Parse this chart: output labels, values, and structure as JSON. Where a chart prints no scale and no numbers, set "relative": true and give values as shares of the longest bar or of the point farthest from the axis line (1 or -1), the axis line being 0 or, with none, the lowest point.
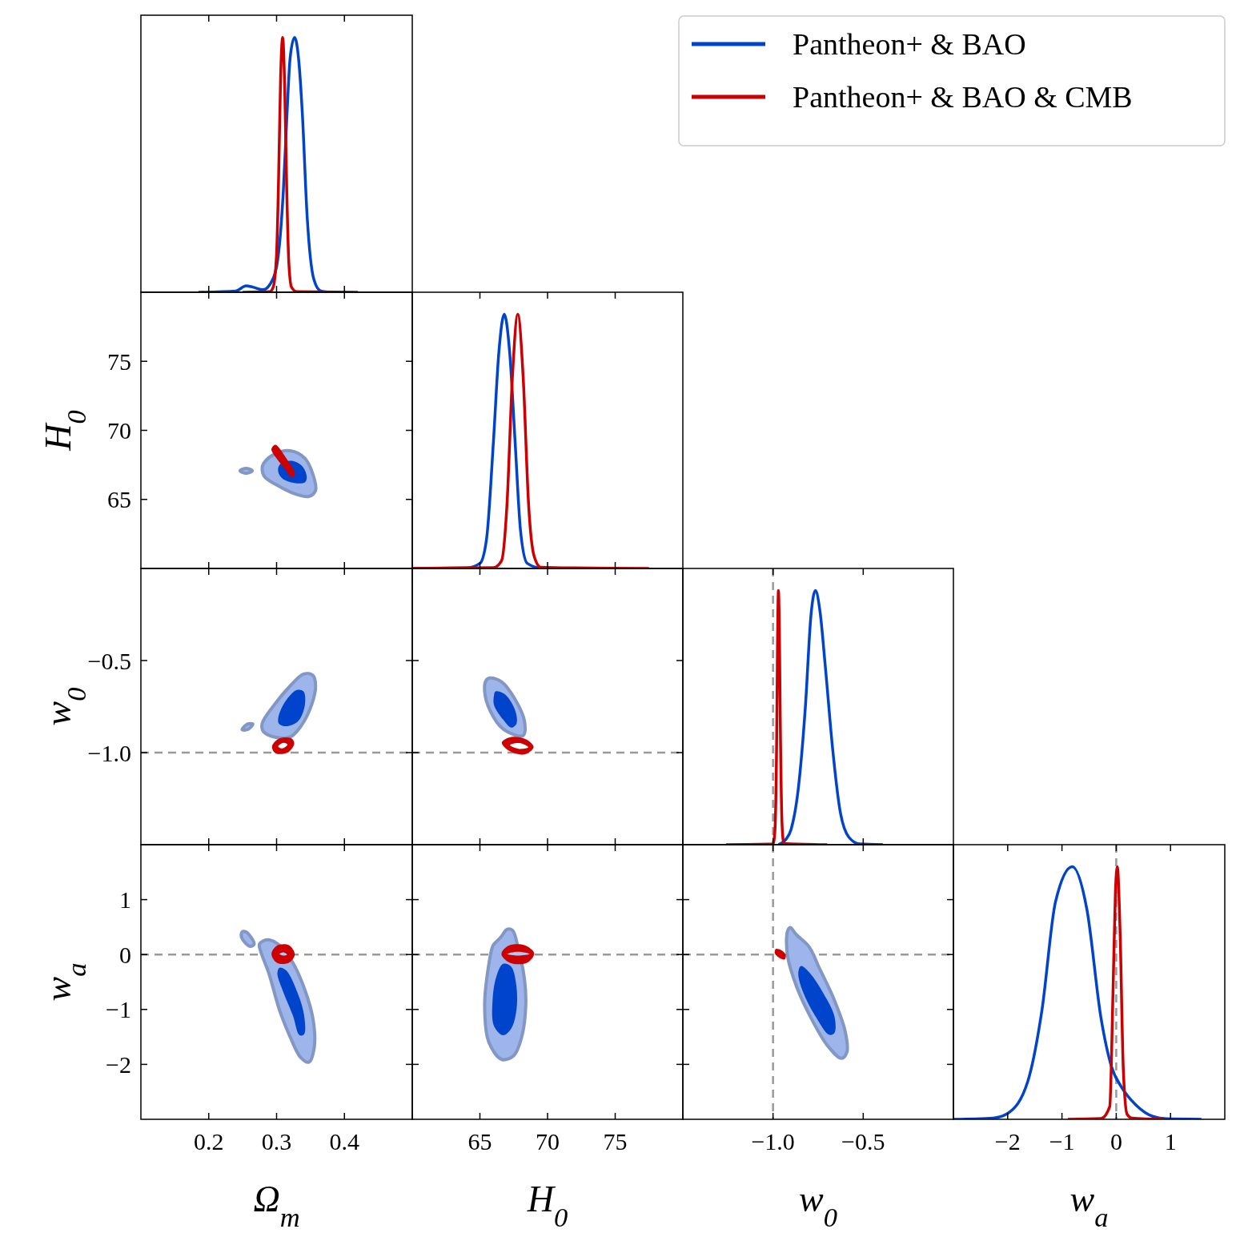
{
  "chart_data": [
    {
      "type": "line",
      "relative": true,
      "xlim": [
        0.1,
        0.5
      ],
      "xticks": [
        0.2,
        0.3,
        0.4
      ],
      "tick_labels": false,
      "legend": "right",
      "series": [
        {
          "name": "Pantheon+ & BAO",
          "color": "#0044cc",
          "x": [
            0.185,
            0.24,
            0.255,
            0.265,
            0.28,
            0.29,
            0.3,
            0.31,
            0.315,
            0.32,
            0.3265,
            0.333,
            0.338,
            0.345,
            0.355,
            0.365,
            0.38
          ],
          "values": [
            0,
            0.005,
            0.025,
            0.02,
            0.01,
            0.03,
            0.1,
            0.4,
            0.68,
            0.92,
            1,
            0.9,
            0.7,
            0.3,
            0.05,
            0.005,
            0
          ]
        },
        {
          "name": "Pantheon+ & BAO & CMB",
          "color": "#cc0000",
          "x": [
            0.25,
            0.29,
            0.295,
            0.3,
            0.303,
            0.306,
            0.309,
            0.312,
            0.315,
            0.318,
            0.322,
            0.33,
            0.42
          ],
          "values": [
            0,
            0.002,
            0.02,
            0.15,
            0.45,
            0.85,
            1,
            0.8,
            0.4,
            0.12,
            0.02,
            0.002,
            0
          ]
        }
      ]
    },
    {
      "type": "area",
      "xlim": [
        0.1,
        0.5
      ],
      "xticks": [
        0.2,
        0.3,
        0.4
      ],
      "ylim": [
        60,
        80
      ],
      "yticks": [
        65,
        70,
        75
      ],
      "tick_labels": "y",
      "ylabel": "H$_{0}$",
      "series": [
        {
          "color": "#9db5ea",
          "x": [
            0.2807,
            0.2965,
            0.32,
            0.3417,
            0.3535,
            0.3575,
            0.3476,
            0.324,
            0.3004,
            0.2827,
            0.2787
          ],
          "values": [
            67.59,
            68.27,
            68.52,
            67.98,
            66.82,
            65.65,
            65.22,
            65.46,
            66.04,
            66.62,
            67.2
          ]
        },
        {
          "color": "#9db5ea",
          "x": [
            0.2461,
            0.2551,
            0.2642,
            0.2551
          ],
          "values": [
            67.07,
            67.25,
            67.07,
            66.89
          ]
        },
        {
          "color": "#0044cc",
          "x": [
            0.3043,
            0.322,
            0.3378,
            0.3445,
            0.3417,
            0.326,
            0.3083,
            0.3024
          ],
          "values": [
            67.5,
            67.79,
            67.4,
            66.62,
            66.23,
            66.19,
            66.52,
            67.01
          ]
        },
        {
          "color": "#cc0000",
          "x": [
            0.2933,
            0.2984,
            0.3142,
            0.3272,
            0.3232,
            0.3122,
            0.2925
          ],
          "values": [
            68.76,
            68.95,
            67.98,
            66.82,
            66.58,
            67.2,
            68.56
          ]
        }
      ]
    },
    {
      "type": "line",
      "relative": true,
      "xlim": [
        60,
        80
      ],
      "xticks": [
        65,
        70,
        75
      ],
      "tick_labels": false,
      "series": [
        {
          "color": "#0044cc",
          "x": [
            60,
            64,
            65,
            65.5,
            66,
            66.4,
            66.8,
            67.2,
            67.6,
            68,
            68.5,
            69.5,
            72
          ],
          "values": [
            0,
            0.002,
            0.02,
            0.12,
            0.5,
            0.85,
            1,
            0.85,
            0.5,
            0.15,
            0.02,
            0.002,
            0
          ]
        },
        {
          "color": "#cc0000",
          "x": [
            60,
            66,
            66.6,
            67,
            67.4,
            67.8,
            68.2,
            68.6,
            69,
            69.5,
            72,
            77.5
          ],
          "values": [
            0,
            0.003,
            0.03,
            0.25,
            0.75,
            1,
            0.75,
            0.25,
            0.05,
            0.005,
            0.002,
            0
          ]
        }
      ]
    },
    {
      "type": "area",
      "xlim": [
        0.1,
        0.5
      ],
      "xticks": [
        0.2,
        0.3,
        0.4
      ],
      "ylim": [
        -1.5,
        0
      ],
      "yticks": [
        {
          "value": -1,
          "label": "−1.0"
        },
        {
          "value": -0.5,
          "label": "−0.5"
        }
      ],
      "tick_labels": "y",
      "ylabel": "w$_{0}$",
      "ref_lines": [
        {
          "axis": "y",
          "value": -1,
          "color": "#999999",
          "line_style": "dashed"
        }
      ],
      "series": [
        {
          "color": "#9db5ea",
          "x": [
            0.2787,
            0.2965,
            0.32,
            0.3398,
            0.3535,
            0.3575,
            0.3516,
            0.3358,
            0.32,
            0.2965,
            0.2807
          ],
          "values": [
            -0.843,
            -0.741,
            -0.638,
            -0.573,
            -0.58,
            -0.638,
            -0.741,
            -0.857,
            -0.915,
            -0.915,
            -0.886
          ]
        },
        {
          "color": "#9db5ea",
          "x": [
            0.2492,
            0.2571,
            0.265,
            0.2571
          ],
          "values": [
            -0.875,
            -0.845,
            -0.845,
            -0.875
          ]
        },
        {
          "color": "#0044cc",
          "x": [
            0.3024,
            0.3122,
            0.33,
            0.3398,
            0.3417,
            0.3319,
            0.3142,
            0.3035
          ],
          "values": [
            -0.813,
            -0.726,
            -0.66,
            -0.668,
            -0.741,
            -0.828,
            -0.857,
            -0.843
          ]
        },
        {
          "color": "#cc0000",
          "x": [
            0.2933,
            0.3043,
            0.322,
            0.326,
            0.3161,
            0.2984
          ],
          "values": [
            -0.966,
            -0.923,
            -0.923,
            -0.952,
            -1.0,
            -1.003
          ]
        },
        {
          "color": "#ffffff",
          "x": [
            0.3024,
            0.3102,
            0.3161,
            0.3083
          ],
          "values": [
            -0.966,
            -0.947,
            -0.956,
            -0.977
          ]
        }
      ]
    },
    {
      "type": "area",
      "xlim": [
        60,
        80
      ],
      "xticks": [
        65,
        70,
        75
      ],
      "ylim": [
        -1.5,
        0
      ],
      "yticks": [
        -1,
        -0.5
      ],
      "tick_labels": false,
      "ref_lines": [
        {
          "axis": "y",
          "value": -1,
          "color": "#999999",
          "line_style": "dashed"
        }
      ],
      "series": [
        {
          "color": "#9db5ea",
          "x": [
            65.74,
            66.62,
            67.6,
            68.29,
            68.19,
            66.72,
            65.74,
            65.35,
            65.45
          ],
          "values": [
            -0.595,
            -0.617,
            -0.711,
            -0.828,
            -0.908,
            -0.872,
            -0.77,
            -0.668,
            -0.609
          ]
        },
        {
          "color": "#0044cc",
          "x": [
            66.14,
            66.82,
            67.6,
            67.7,
            67.31,
            66.72,
            66.04,
            66.04
          ],
          "values": [
            -0.668,
            -0.682,
            -0.77,
            -0.843,
            -0.864,
            -0.821,
            -0.741,
            -0.69
          ]
        },
        {
          "color": "#cc0000",
          "x": [
            66.62,
            67.31,
            68.48,
            68.97,
            68.29,
            67.11
          ],
          "values": [
            -0.945,
            -0.915,
            -0.93,
            -0.971,
            -1.01,
            -0.988
          ]
        },
        {
          "color": "#ffffff",
          "x": [
            67.21,
            67.9,
            68.58,
            67.9
          ],
          "values": [
            -0.959,
            -0.948,
            -0.971,
            -0.98
          ]
        }
      ]
    },
    {
      "type": "line",
      "relative": true,
      "xlim": [
        -1.5,
        0
      ],
      "xticks": [
        -1,
        -0.5
      ],
      "tick_labels": false,
      "ref_lines": [
        {
          "axis": "x",
          "value": -1,
          "color": "#999999",
          "line_style": "dashed"
        }
      ],
      "series": [
        {
          "color": "#0044cc",
          "x": [
            -0.97,
            -0.93,
            -0.9,
            -0.86,
            -0.82,
            -0.79,
            -0.765,
            -0.74,
            -0.71,
            -0.67,
            -0.63,
            -0.58,
            -0.52,
            -0.39
          ],
          "values": [
            0,
            0.02,
            0.06,
            0.22,
            0.55,
            0.9,
            1,
            0.92,
            0.7,
            0.38,
            0.14,
            0.03,
            0.003,
            0
          ]
        },
        {
          "color": "#cc0000",
          "x": [
            -1.26,
            -1.0,
            -0.99,
            -0.98,
            -0.975,
            -0.97,
            -0.965,
            -0.96,
            -0.95,
            -0.94,
            -0.7
          ],
          "values": [
            0,
            0.003,
            0.05,
            0.4,
            0.8,
            1,
            0.85,
            0.5,
            0.08,
            0.005,
            0
          ]
        }
      ]
    },
    {
      "type": "area",
      "xlim": [
        0.1,
        0.5
      ],
      "xticks": [
        0.2,
        0.3,
        0.4
      ],
      "ylim": [
        -3,
        2
      ],
      "yticks": [
        {
          "value": -2,
          "label": "−2"
        },
        {
          "value": -1,
          "label": "−1"
        },
        0,
        1
      ],
      "xlabel": "Ω$_{m}$",
      "ylabel": "w$_{a}$",
      "ref_lines": [
        {
          "axis": "y",
          "value": 0,
          "color": "#999999",
          "line_style": "dashed"
        }
      ],
      "series": [
        {
          "color": "#9db5ea",
          "x": [
            0.2748,
            0.2866,
            0.3043,
            0.324,
            0.3398,
            0.3535,
            0.3555,
            0.3476,
            0.3358,
            0.32,
            0.3043,
            0.2886,
            0.2768
          ],
          "values": [
            0.19,
            0.27,
            0.17,
            -0.15,
            -0.58,
            -1.16,
            -1.69,
            -1.96,
            -1.88,
            -1.5,
            -1.01,
            -0.34,
            0.05
          ]
        },
        {
          "color": "#9db5ea",
          "x": [
            0.2492,
            0.2551,
            0.2669,
            0.261,
            0.2484
          ],
          "values": [
            0.41,
            0.41,
            0.19,
            0.15,
            0.31
          ]
        },
        {
          "color": "#0044cc",
          "x": [
            0.3043,
            0.3142,
            0.3319,
            0.3406,
            0.3406,
            0.3339,
            0.324,
            0.3083,
            0.3012
          ],
          "values": [
            -0.24,
            -0.29,
            -0.73,
            -1.11,
            -1.45,
            -1.47,
            -1.11,
            -0.63,
            -0.34
          ]
        },
        {
          "color": "#cc0000",
          "x": [
            0.2925,
            0.3004,
            0.3181,
            0.3268,
            0.3181,
            0.3004
          ],
          "values": [
            0.01,
            0.16,
            0.17,
            0,
            -0.15,
            -0.15
          ]
        },
        {
          "color": "#b4c6ee",
          "x": [
            0.3043,
            0.3102,
            0.3154,
            0.3102
          ],
          "values": [
            0.01,
            0.04,
            0,
            -0.02
          ]
        }
      ]
    },
    {
      "type": "area",
      "xlim": [
        60,
        80
      ],
      "xticks": [
        65,
        70,
        75
      ],
      "ylim": [
        -3,
        2
      ],
      "yticks": [
        -2,
        -1,
        0,
        1
      ],
      "tick_labels": "x",
      "xlabel": "H$_{0}$",
      "ref_lines": [
        {
          "axis": "y",
          "value": 0,
          "color": "#999999",
          "line_style": "dashed"
        }
      ],
      "series": [
        {
          "color": "#9db5ea",
          "x": [
            66.04,
            66.53,
            67.02,
            67.41,
            67.8,
            68.29,
            68.39,
            68.09,
            67.5,
            66.62,
            65.65,
            65.35,
            65.65,
            65.94
          ],
          "values": [
            0.19,
            0.31,
            0.46,
            0.44,
            0.15,
            -0.44,
            -0.92,
            -1.5,
            -1.84,
            -1.91,
            -1.59,
            -0.92,
            -0.19,
            0.15
          ]
        },
        {
          "color": "#0044cc",
          "x": [
            66.72,
            67.31,
            67.7,
            67.7,
            67.31,
            66.72,
            66.04,
            65.94,
            66.23
          ],
          "values": [
            -0.17,
            -0.22,
            -0.58,
            -1.01,
            -1.35,
            -1.47,
            -1.3,
            -0.82,
            -0.39
          ]
        },
        {
          "color": "#cc0000",
          "x": [
            66.59,
            67.11,
            68.29,
            69.01,
            68.48,
            67.21
          ],
          "values": [
            0.01,
            0.16,
            0.17,
            0.02,
            -0.15,
            -0.15
          ]
        },
        {
          "color": "#b4c6ee",
          "x": [
            67.02,
            67.8,
            68.68,
            67.8
          ],
          "values": [
            0.01,
            0.05,
            0.01,
            -0.02
          ]
        }
      ]
    },
    {
      "type": "area",
      "xlim": [
        -1.5,
        0
      ],
      "xticks": [
        {
          "value": -1,
          "label": "−1.0"
        },
        {
          "value": -0.5,
          "label": "−0.5"
        }
      ],
      "ylim": [
        -3,
        2
      ],
      "yticks": [
        -2,
        -1,
        0,
        1
      ],
      "tick_labels": "x",
      "xlabel": "w$_{0}$",
      "ref_lines": [
        {
          "axis": "x",
          "value": -1,
          "color": "#999999",
          "line_style": "dashed"
        },
        {
          "axis": "y",
          "value": 0,
          "color": "#999999",
          "line_style": "dashed"
        }
      ],
      "series": [
        {
          "color": "#9db5ea",
          "x": [
            -0.905,
            -0.87,
            -0.8,
            -0.74,
            -0.66,
            -0.6,
            -0.59,
            -0.62,
            -0.7,
            -0.79,
            -0.87,
            -0.92,
            -0.92
          ],
          "values": [
            0.49,
            0.36,
            0.14,
            -0.27,
            -0.83,
            -1.4,
            -1.77,
            -1.89,
            -1.65,
            -1.15,
            -0.58,
            -0.02,
            0.42
          ]
        },
        {
          "color": "#0044cc",
          "x": [
            -0.84,
            -0.79,
            -0.72,
            -0.66,
            -0.66,
            -0.69,
            -0.76,
            -0.83,
            -0.86,
            -0.85
          ],
          "values": [
            -0.21,
            -0.36,
            -0.71,
            -1.12,
            -1.43,
            -1.46,
            -1.15,
            -0.71,
            -0.36,
            -0.22
          ]
        },
        {
          "color": "#cc0000",
          "x": [
            -0.985,
            -0.955,
            -0.93,
            -0.935,
            -0.96,
            -0.99
          ],
          "values": [
            0.1,
            0.08,
            0,
            -0.09,
            -0.07,
            0.02
          ]
        }
      ]
    },
    {
      "type": "line",
      "relative": true,
      "xlim": [
        -3,
        2
      ],
      "xticks": [
        {
          "value": -2,
          "label": "−2"
        },
        {
          "value": -1,
          "label": "−1"
        },
        0,
        1
      ],
      "tick_labels": "x",
      "xlabel": "w$_{a}$",
      "ref_lines": [
        {
          "axis": "x",
          "value": 0,
          "color": "#999999",
          "line_style": "dashed"
        }
      ],
      "series": [
        {
          "color": "#0044cc",
          "x": [
            -3,
            -2.27,
            -2.01,
            -1.63,
            -1.37,
            -1.12,
            -0.81,
            -0.54,
            -0.28,
            -0.09,
            0.1,
            0.36,
            0.68,
            0.93,
            1.57
          ],
          "values": [
            0,
            0.005,
            0.022,
            0.15,
            0.43,
            0.86,
            1,
            0.83,
            0.4,
            0.21,
            0.126,
            0.057,
            0.011,
            0.002,
            0
          ]
        },
        {
          "color": "#cc0000",
          "x": [
            -0.89,
            -0.28,
            -0.12,
            -0.06,
            -0.015,
            0.02,
            0.07,
            0.13,
            0.2,
            0.29,
            0.87
          ],
          "values": [
            0,
            0.003,
            0.05,
            0.5,
            0.9,
            1,
            0.75,
            0.2,
            0.02,
            0.005,
            0
          ]
        }
      ]
    }
  ]
}
